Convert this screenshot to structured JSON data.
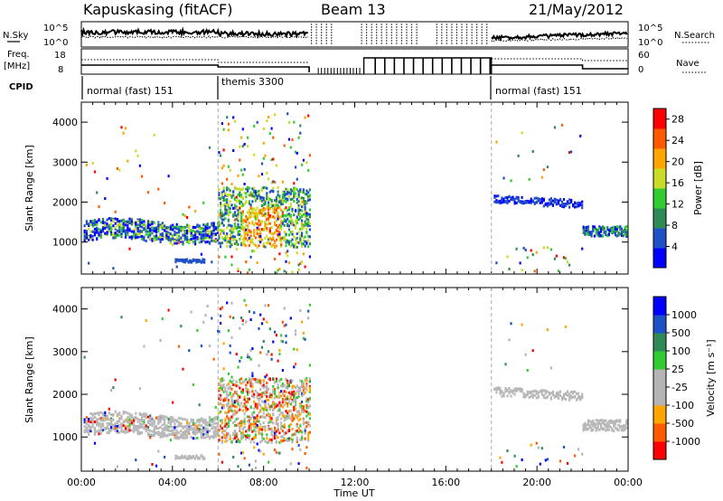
{
  "header": {
    "station": "Kapuskasing (fitACF)",
    "beam": "Beam 13",
    "date": "21/May/2012"
  },
  "top_panels": {
    "nsky_label": "N.Sky",
    "nsearch_label": "N.Search",
    "freq_label_1": "Freq.",
    "freq_label_2": "[MHz]",
    "nave_label": "Nave",
    "cpid_label": "CPID",
    "nsky_ticks": [
      "10^5",
      "10^0"
    ],
    "nsearch_ticks": [
      "10^5",
      "10^0"
    ],
    "freq_ticks": [
      "18",
      "8"
    ],
    "nave_ticks": [
      "60",
      "0"
    ],
    "cpid_segments": [
      {
        "label": "normal (fast) 151",
        "start": 0,
        "end": 6
      },
      {
        "label": "themis 3300",
        "start": 6,
        "end": 18
      },
      {
        "label": "normal (fast) 151",
        "start": 18,
        "end": 24
      }
    ]
  },
  "chart_data": [
    {
      "type": "heatmap",
      "name": "power",
      "xlabel": "",
      "ylabel": "Slant Range [km]",
      "xlim": [
        0,
        24
      ],
      "ylim": [
        200,
        4500
      ],
      "yticks": [
        "1000",
        "2000",
        "3000",
        "4000"
      ],
      "colorbar": {
        "label": "Power [dB]",
        "ticks": [
          "4",
          "8",
          "12",
          "16",
          "20",
          "24",
          "28"
        ],
        "range": [
          0,
          30
        ]
      }
    },
    {
      "type": "heatmap",
      "name": "velocity",
      "xlabel": "Time UT",
      "ylabel": "Slant Range [km]",
      "xlim": [
        0,
        24
      ],
      "ylim": [
        200,
        4500
      ],
      "xticks": [
        "00:00",
        "04:00",
        "08:00",
        "12:00",
        "16:00",
        "20:00",
        "00:00"
      ],
      "yticks": [
        "1000",
        "2000",
        "3000",
        "4000"
      ],
      "colorbar": {
        "label": "Velocity [m s⁻¹]",
        "ticks": [
          "1000",
          "500",
          "100",
          "25",
          "-25",
          "-100",
          "-500",
          "-1000"
        ]
      }
    }
  ],
  "colors": {
    "power_scale": [
      "#0000ff",
      "#2050c8",
      "#2e8b57",
      "#32cd32",
      "#c8dc28",
      "#ffa500",
      "#ff5a00",
      "#ff0000"
    ],
    "velocity_scale": [
      "#ff0000",
      "#ff5a00",
      "#ffa500",
      "#b4b4b4",
      "#b4b4b4",
      "#32cd32",
      "#2e8b57",
      "#2050c8",
      "#0000ff"
    ]
  }
}
